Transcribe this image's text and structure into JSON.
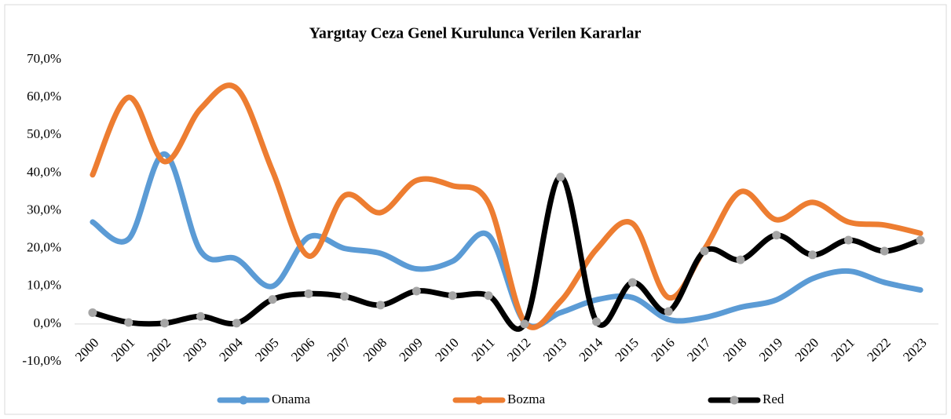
{
  "chart_data": {
    "type": "line",
    "title": "Yargıtay  Ceza Genel Kurulunca  Verilen Kararlar",
    "categories": [
      "2000",
      "2001",
      "2002",
      "2003",
      "2004",
      "2005",
      "2006",
      "2007",
      "2008",
      "2009",
      "2010",
      "2011",
      "2012",
      "2013",
      "2014",
      "2015",
      "2016",
      "2017",
      "2018",
      "2019",
      "2020",
      "2021",
      "2022",
      "2023"
    ],
    "series": [
      {
        "name": "Onama",
        "color": "#5b9bd5",
        "values": [
          27,
          22.5,
          45,
          19.3,
          17.2,
          10,
          23,
          20,
          18.7,
          14.6,
          16.6,
          23.5,
          0.5,
          3,
          6.4,
          7,
          1.2,
          1.7,
          4.4,
          6.4,
          12,
          14,
          11,
          9
        ]
      },
      {
        "name": "Bozma",
        "color": "#ed7d31",
        "values": [
          39.5,
          60,
          43,
          57,
          62.4,
          40.5,
          18,
          34,
          29.5,
          38,
          36.6,
          32,
          0.5,
          6,
          19.8,
          26.6,
          7,
          19.8,
          35,
          27.6,
          32.2,
          27,
          26.2,
          24
        ]
      },
      {
        "name": "Red",
        "color": "#000000",
        "marker_color": "#a5a5a5",
        "values": [
          3,
          0.4,
          0.2,
          2,
          0.2,
          6.5,
          8,
          7.3,
          5,
          8.7,
          7.5,
          7.5,
          0,
          38.9,
          0.6,
          11,
          3.3,
          19.3,
          17,
          23.5,
          18.3,
          22.2,
          19.3,
          22.2
        ]
      }
    ],
    "ylim": [
      -10,
      70
    ],
    "yticks": [
      {
        "value": -10,
        "label": "-10,0%"
      },
      {
        "value": 0,
        "label": "0,0%"
      },
      {
        "value": 10,
        "label": "10,0%"
      },
      {
        "value": 20,
        "label": "20,0%"
      },
      {
        "value": 30,
        "label": "30,0%"
      },
      {
        "value": 40,
        "label": "40,0%"
      },
      {
        "value": 50,
        "label": "50,0%"
      },
      {
        "value": 60,
        "label": "60,0%"
      },
      {
        "value": 70,
        "label": "70,0%"
      }
    ],
    "grid": false,
    "legend": "bottom"
  }
}
